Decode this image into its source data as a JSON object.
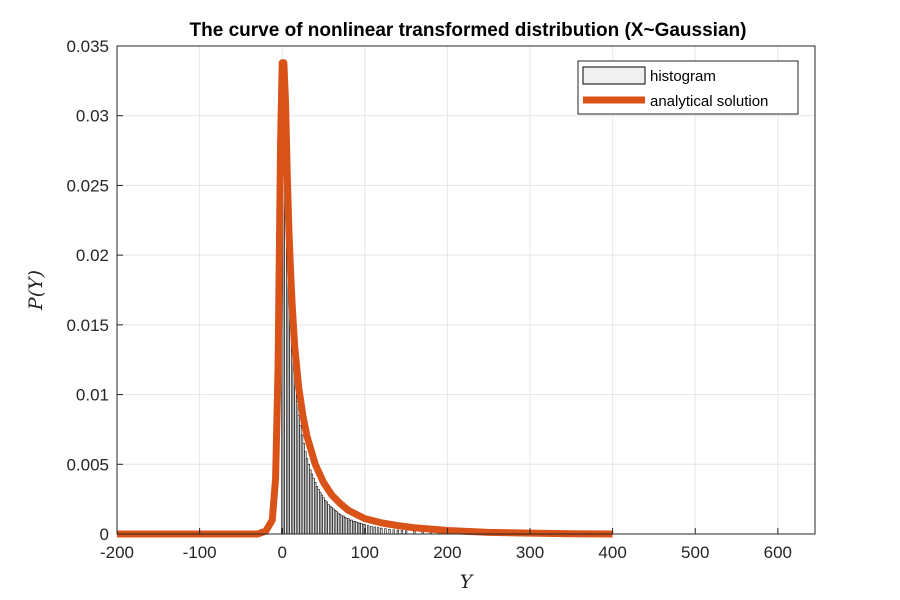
{
  "chart_data": {
    "type": "bar",
    "title": "The curve of nonlinear transformed distribution (X~Gaussian)",
    "xlabel": "Y",
    "ylabel": "P(Y)",
    "xlim": [
      -200,
      645
    ],
    "ylim": [
      0,
      0.035
    ],
    "xticks": [
      -200,
      -100,
      0,
      100,
      200,
      300,
      400,
      500,
      600
    ],
    "xtick_labels": [
      "-200",
      "-100",
      "0",
      "100",
      "200",
      "300",
      "400",
      "500",
      "600"
    ],
    "yticks": [
      0,
      0.005,
      0.01,
      0.015,
      0.02,
      0.025,
      0.03,
      0.035
    ],
    "ytick_labels": [
      "0",
      "0.005",
      "0.01",
      "0.015",
      "0.02",
      "0.025",
      "0.03",
      "0.035"
    ],
    "grid": true,
    "legend_position": "top-right",
    "series": [
      {
        "name": "histogram",
        "kind": "histogram",
        "bin_width": 2,
        "x": [
          0,
          2,
          4,
          6,
          8,
          10,
          12,
          14,
          16,
          18,
          20,
          22,
          24,
          26,
          28,
          30,
          32,
          34,
          36,
          38,
          40,
          42,
          44,
          46,
          48,
          50,
          52,
          54,
          56,
          58,
          60,
          62,
          64,
          66,
          68,
          70,
          72,
          74,
          76,
          78,
          80,
          82,
          84,
          86,
          88,
          90,
          92,
          94,
          96,
          98,
          100,
          104,
          108,
          112,
          116,
          120,
          125,
          130,
          135,
          140,
          145,
          150,
          160,
          170,
          180,
          190,
          200,
          210,
          220,
          230
        ],
        "values": [
          0.033,
          0.0315,
          0.026,
          0.0215,
          0.018,
          0.0155,
          0.0135,
          0.012,
          0.0105,
          0.0095,
          0.0085,
          0.0078,
          0.0071,
          0.0065,
          0.0059,
          0.0054,
          0.005,
          0.0046,
          0.0043,
          0.004,
          0.0037,
          0.0034,
          0.0032,
          0.003,
          0.0028,
          0.0026,
          0.0024,
          0.0023,
          0.0021,
          0.002,
          0.0019,
          0.0018,
          0.0017,
          0.0016,
          0.0015,
          0.0014,
          0.0013,
          0.0013,
          0.0012,
          0.0011,
          0.0011,
          0.001,
          0.001,
          0.0009,
          0.0009,
          0.00085,
          0.0008,
          0.00078,
          0.00074,
          0.0007,
          0.00066,
          0.0006,
          0.00055,
          0.0005,
          0.00046,
          0.00042,
          0.00038,
          0.00034,
          0.0003,
          0.00028,
          0.00025,
          0.00022,
          0.00018,
          0.00015,
          0.00012,
          0.0001,
          8e-05,
          6e-05,
          4e-05,
          2e-05
        ],
        "color": "#f0f0f0",
        "edge_color": "#000000"
      },
      {
        "name": "analytical solution",
        "kind": "line",
        "x": [
          -200,
          -100,
          -30,
          -20,
          -12,
          -8,
          -5,
          -2,
          0,
          2,
          4,
          6,
          8,
          10,
          12,
          15,
          20,
          25,
          30,
          40,
          50,
          60,
          70,
          80,
          90,
          100,
          120,
          140,
          160,
          180,
          200,
          250,
          300,
          350,
          400
        ],
        "values": [
          0,
          0,
          0,
          0.0002,
          0.001,
          0.004,
          0.012,
          0.028,
          0.0338,
          0.0338,
          0.031,
          0.026,
          0.022,
          0.019,
          0.0165,
          0.0135,
          0.0105,
          0.0085,
          0.007,
          0.005,
          0.0037,
          0.0028,
          0.0022,
          0.0017,
          0.0014,
          0.0011,
          0.0008,
          0.0006,
          0.00045,
          0.00035,
          0.00025,
          0.00012,
          6e-05,
          2e-05,
          0
        ],
        "color": "#d95319"
      }
    ]
  }
}
